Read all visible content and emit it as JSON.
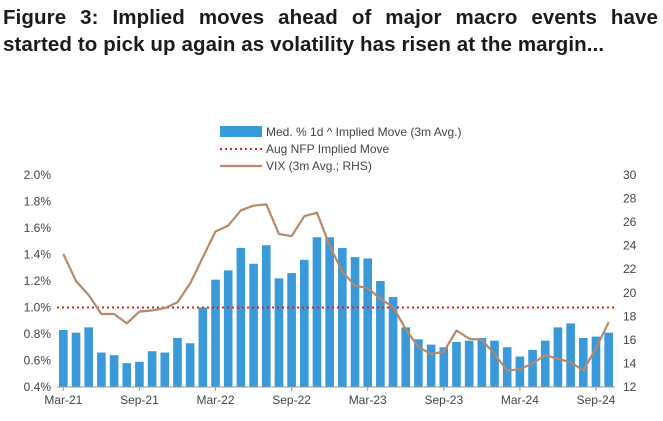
{
  "title": "Figure 3: Implied moves ahead of major macro events have started to pick up again as volatility has risen at the margin...",
  "colors": {
    "bars": "#3a9ad9",
    "aug_nfp": "#e0201b",
    "vix": "#b5896a",
    "axis": "#999999"
  },
  "chart_data": {
    "type": "bar",
    "legend_position": "top-center",
    "grid": false,
    "x_tick_labels": [
      "Mar-21",
      "Sep-21",
      "Mar-22",
      "Sep-22",
      "Mar-23",
      "Sep-23",
      "Mar-24",
      "Sep-24"
    ],
    "y_left": {
      "ylim": [
        0.4,
        2.0
      ],
      "ticks": [
        "0.4%",
        "0.6%",
        "0.8%",
        "1.0%",
        "1.2%",
        "1.4%",
        "1.6%",
        "1.8%",
        "2.0%"
      ]
    },
    "y_right": {
      "ylim": [
        12,
        30
      ],
      "ticks": [
        "12",
        "14",
        "16",
        "18",
        "20",
        "22",
        "24",
        "26",
        "28",
        "30"
      ]
    },
    "series": [
      {
        "name": "Med. % 1d ^ Implied Move (3m Avg.)",
        "type": "bar",
        "axis": "left",
        "values": [
          0.83,
          0.81,
          0.85,
          0.66,
          0.64,
          0.58,
          0.59,
          0.67,
          0.66,
          0.77,
          0.73,
          1.0,
          1.21,
          1.28,
          1.45,
          1.33,
          1.47,
          1.22,
          1.26,
          1.36,
          1.53,
          1.53,
          1.45,
          1.38,
          1.37,
          1.2,
          1.08,
          0.85,
          0.76,
          0.72,
          0.7,
          0.74,
          0.75,
          0.77,
          0.75,
          0.7,
          0.63,
          0.68,
          0.75,
          0.85,
          0.88,
          0.77,
          0.78,
          0.81
        ]
      },
      {
        "name": "Aug NFP Implied Move",
        "type": "hline",
        "axis": "left",
        "value": 1.0
      },
      {
        "name": "VIX (3m Avg.; RHS)",
        "type": "line",
        "axis": "right",
        "values": [
          23.3,
          21.0,
          19.8,
          18.2,
          18.2,
          17.4,
          18.4,
          18.5,
          18.7,
          19.2,
          20.8,
          23.0,
          25.2,
          25.7,
          27.0,
          27.4,
          27.5,
          25.0,
          24.8,
          26.5,
          26.8,
          24.0,
          21.8,
          20.6,
          20.4,
          19.5,
          18.8,
          16.9,
          15.4,
          14.8,
          15.0,
          16.8,
          16.1,
          16.0,
          14.8,
          13.4,
          13.5,
          14.0,
          14.7,
          14.4,
          14.1,
          13.4,
          15.3,
          17.5
        ]
      }
    ]
  }
}
